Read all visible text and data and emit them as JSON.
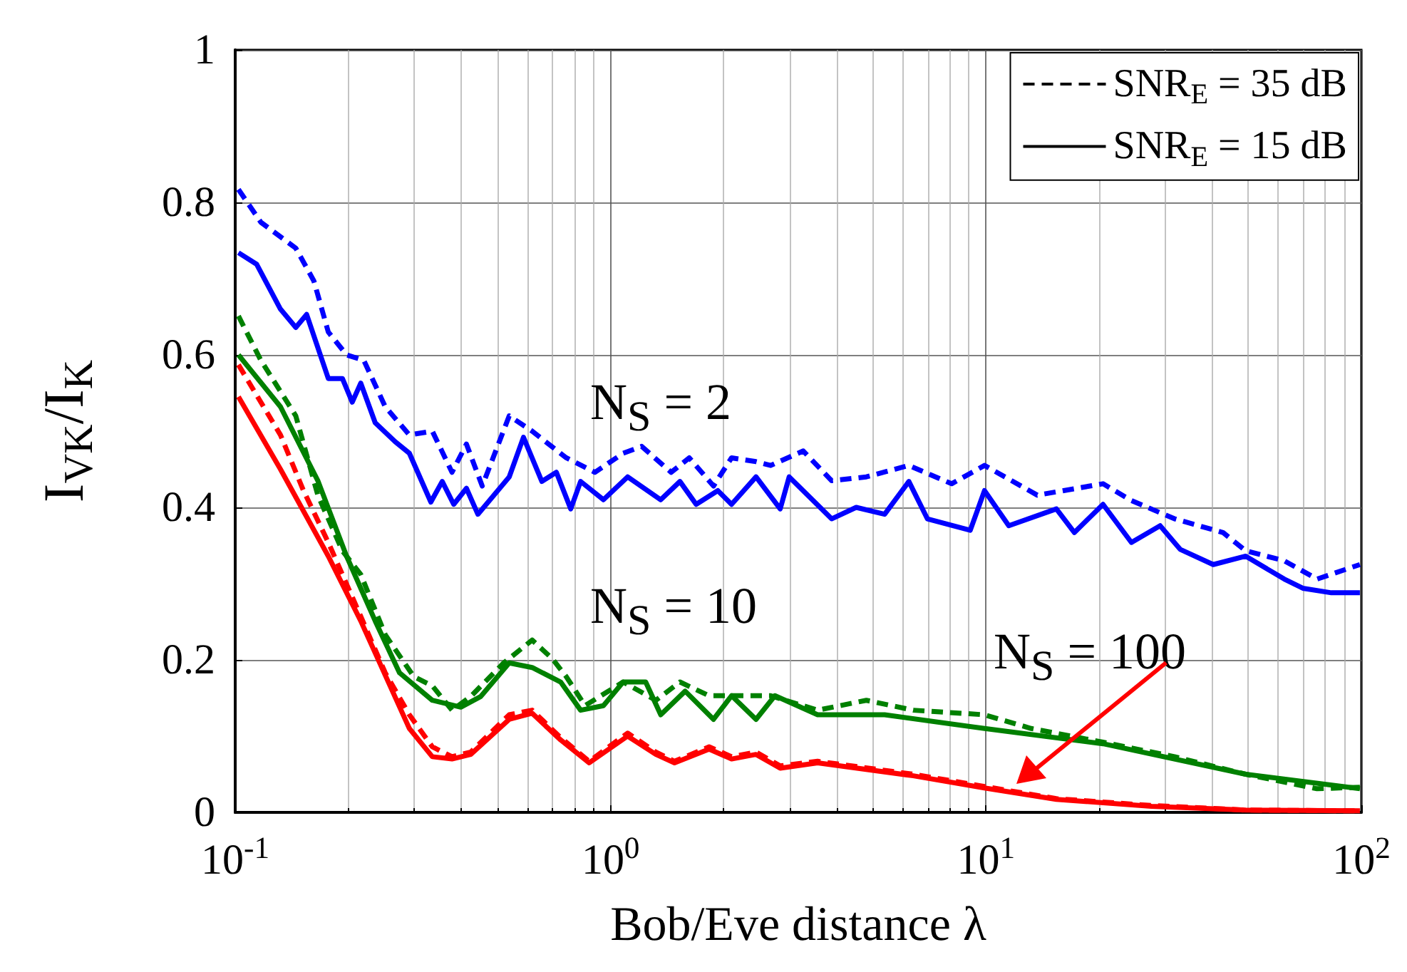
{
  "chart_data": {
    "type": "line",
    "xlabel": "Bob/Eve distance λ",
    "ylabel": "I$_{VK}$/I$_{K}$",
    "log": "x",
    "grid": true,
    "legend": "top right",
    "marker": "none",
    "xlim": [
      0.1,
      100
    ],
    "xticks": [
      {
        "value": 0.1,
        "label": "10$^{-1}$"
      },
      {
        "value": 1,
        "label": "10$^{0}$"
      },
      {
        "value": 10,
        "label": "10$^{1}$"
      },
      {
        "value": 100,
        "label": "10$^{2}$"
      }
    ],
    "ylim": [
      0,
      1
    ],
    "yticks": [
      0,
      0.2,
      0.4,
      0.6,
      0.8,
      1
    ],
    "series": [
      {
        "name": "SNR$_{E}$ = 35 dB",
        "color": "#000000",
        "line_style": "dashed"
      },
      {
        "name": "SNR$_{E}$ = 15 dB",
        "color": "#000000",
        "line_style": "solid"
      },
      {
        "color": "#0000ff",
        "line_style": "dashed",
        "x": [
          0.102,
          0.117,
          0.145,
          0.162,
          0.177,
          0.198,
          0.22,
          0.251,
          0.291,
          0.335,
          0.378,
          0.413,
          0.455,
          0.537,
          0.618,
          0.762,
          0.908,
          1.08,
          1.21,
          1.45,
          1.62,
          1.88,
          2.1,
          2.44,
          2.67,
          3.26,
          3.88,
          4.8,
          6.23,
          8.1,
          9.91,
          13.7,
          20.5,
          24.4,
          31.8,
          42.8,
          49.2,
          62.3,
          76.2,
          99.1
        ],
        "values": [
          0.817,
          0.774,
          0.74,
          0.697,
          0.63,
          0.6,
          0.593,
          0.532,
          0.495,
          0.5,
          0.446,
          0.483,
          0.428,
          0.52,
          0.5,
          0.465,
          0.446,
          0.471,
          0.48,
          0.446,
          0.465,
          0.428,
          0.465,
          0.46,
          0.455,
          0.474,
          0.435,
          0.44,
          0.455,
          0.431,
          0.455,
          0.416,
          0.431,
          0.409,
          0.385,
          0.367,
          0.343,
          0.33,
          0.306,
          0.325
        ]
      },
      {
        "color": "#0000ff",
        "line_style": "solid",
        "x": [
          0.102,
          0.114,
          0.132,
          0.145,
          0.155,
          0.177,
          0.193,
          0.205,
          0.216,
          0.236,
          0.267,
          0.291,
          0.332,
          0.356,
          0.382,
          0.413,
          0.443,
          0.537,
          0.586,
          0.656,
          0.717,
          0.783,
          0.832,
          0.957,
          1.11,
          1.36,
          1.53,
          1.69,
          1.93,
          2.1,
          2.44,
          2.83,
          2.99,
          3.88,
          4.51,
          5.37,
          6.23,
          6.98,
          9.08,
          9.91,
          11.5,
          15.4,
          17.2,
          20.5,
          24.4,
          29.1,
          32.9,
          40.3,
          49.2,
          62.3,
          69.8,
          83.2,
          99.1
        ],
        "values": [
          0.734,
          0.719,
          0.66,
          0.636,
          0.653,
          0.569,
          0.569,
          0.538,
          0.563,
          0.511,
          0.486,
          0.471,
          0.407,
          0.434,
          0.404,
          0.425,
          0.391,
          0.44,
          0.492,
          0.434,
          0.446,
          0.398,
          0.434,
          0.41,
          0.44,
          0.41,
          0.434,
          0.404,
          0.422,
          0.404,
          0.44,
          0.398,
          0.44,
          0.385,
          0.4,
          0.391,
          0.434,
          0.385,
          0.37,
          0.422,
          0.376,
          0.398,
          0.367,
          0.404,
          0.354,
          0.376,
          0.345,
          0.325,
          0.336,
          0.306,
          0.294,
          0.288,
          0.288
        ]
      },
      {
        "color": "#008000",
        "line_style": "dashed",
        "x": [
          0.102,
          0.117,
          0.145,
          0.166,
          0.193,
          0.216,
          0.251,
          0.299,
          0.335,
          0.378,
          0.424,
          0.519,
          0.618,
          0.698,
          0.762,
          0.855,
          1.08,
          1.32,
          1.53,
          1.83,
          2.44,
          2.67,
          3.56,
          4.8,
          6.4,
          9.91,
          13.2,
          20.5,
          31.8,
          49.2,
          76.2,
          99.1
        ],
        "values": [
          0.651,
          0.593,
          0.52,
          0.416,
          0.343,
          0.312,
          0.233,
          0.178,
          0.166,
          0.134,
          0.152,
          0.196,
          0.226,
          0.202,
          0.178,
          0.14,
          0.171,
          0.147,
          0.171,
          0.153,
          0.153,
          0.153,
          0.134,
          0.147,
          0.134,
          0.128,
          0.11,
          0.092,
          0.073,
          0.05,
          0.031,
          0.033
        ]
      },
      {
        "color": "#008000",
        "line_style": "solid",
        "x": [
          0.102,
          0.132,
          0.166,
          0.198,
          0.236,
          0.274,
          0.335,
          0.399,
          0.451,
          0.537,
          0.618,
          0.736,
          0.832,
          0.957,
          1.08,
          1.24,
          1.36,
          1.58,
          1.88,
          2.1,
          2.44,
          2.74,
          3.56,
          5.37,
          9.91,
          20.5,
          49.2,
          99.1
        ],
        "values": [
          0.6,
          0.532,
          0.435,
          0.336,
          0.251,
          0.183,
          0.147,
          0.138,
          0.152,
          0.196,
          0.19,
          0.171,
          0.134,
          0.14,
          0.171,
          0.171,
          0.128,
          0.159,
          0.122,
          0.153,
          0.122,
          0.153,
          0.128,
          0.128,
          0.11,
          0.09,
          0.05,
          0.031
        ]
      },
      {
        "color": "#ff0000",
        "line_style": "dashed",
        "x": [
          0.102,
          0.132,
          0.152,
          0.177,
          0.216,
          0.251,
          0.291,
          0.335,
          0.378,
          0.424,
          0.537,
          0.618,
          0.736,
          0.877,
          1.11,
          1.32,
          1.48,
          1.83,
          2.1,
          2.44,
          2.83,
          3.56,
          6.4,
          9.91,
          15.4,
          27.6,
          49.2,
          99.1
        ],
        "values": [
          0.587,
          0.495,
          0.422,
          0.354,
          0.257,
          0.183,
          0.128,
          0.086,
          0.073,
          0.079,
          0.128,
          0.134,
          0.098,
          0.067,
          0.104,
          0.079,
          0.067,
          0.086,
          0.073,
          0.079,
          0.061,
          0.067,
          0.05,
          0.034,
          0.018,
          0.009,
          0.003,
          0.002
        ]
      },
      {
        "color": "#ff0000",
        "line_style": "solid",
        "x": [
          0.102,
          0.132,
          0.177,
          0.216,
          0.291,
          0.335,
          0.378,
          0.424,
          0.537,
          0.618,
          0.736,
          0.877,
          1.11,
          1.32,
          1.48,
          1.83,
          2.1,
          2.44,
          2.83,
          3.56,
          6.4,
          9.91,
          15.4,
          27.6,
          49.2,
          99.1
        ],
        "values": [
          0.545,
          0.45,
          0.336,
          0.251,
          0.11,
          0.073,
          0.07,
          0.076,
          0.122,
          0.13,
          0.095,
          0.065,
          0.1,
          0.076,
          0.065,
          0.083,
          0.07,
          0.076,
          0.058,
          0.065,
          0.048,
          0.032,
          0.017,
          0.008,
          0.003,
          0.002
        ]
      }
    ],
    "annotations": [
      "N$_{S}$ = 2",
      "N$_{S}$ = 10",
      "N$_{S}$ = 100"
    ]
  }
}
